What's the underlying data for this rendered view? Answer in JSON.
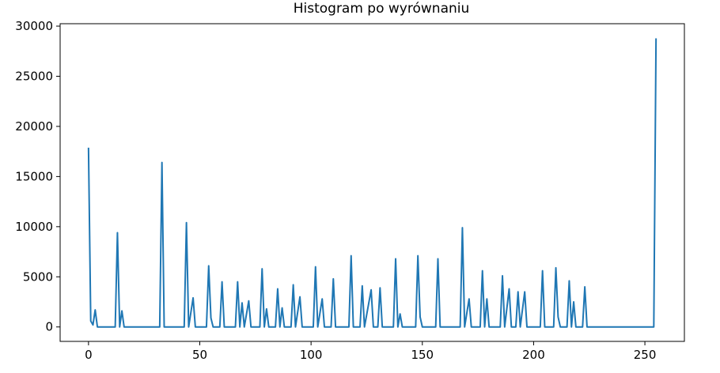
{
  "chart_data": {
    "type": "line",
    "title": "Histogram po wyrównaniu",
    "xlabel": "",
    "ylabel": "",
    "xlim": [
      -12.75,
      267.75
    ],
    "ylim": [
      -1440,
      30240
    ],
    "xticks": [
      0,
      50,
      100,
      150,
      200,
      250
    ],
    "yticks": [
      0,
      5000,
      10000,
      15000,
      20000,
      25000,
      30000
    ],
    "grid": false,
    "series": [
      {
        "color": "#1f77b4",
        "points": [
          [
            0,
            17800
          ],
          [
            1,
            600
          ],
          [
            2,
            200
          ],
          [
            3,
            1700
          ],
          [
            4,
            0
          ],
          [
            12,
            0
          ],
          [
            13,
            9400
          ],
          [
            14,
            0
          ],
          [
            15,
            1600
          ],
          [
            16,
            0
          ],
          [
            32,
            0
          ],
          [
            33,
            16400
          ],
          [
            34,
            0
          ],
          [
            43,
            0
          ],
          [
            44,
            10400
          ],
          [
            45,
            0
          ],
          [
            47,
            2900
          ],
          [
            48,
            0
          ],
          [
            53,
            0
          ],
          [
            54,
            6100
          ],
          [
            55,
            900
          ],
          [
            56,
            0
          ],
          [
            59,
            0
          ],
          [
            60,
            4500
          ],
          [
            61,
            0
          ],
          [
            66,
            0
          ],
          [
            67,
            4500
          ],
          [
            68,
            0
          ],
          [
            69,
            2400
          ],
          [
            70,
            0
          ],
          [
            72,
            2600
          ],
          [
            73,
            0
          ],
          [
            77,
            0
          ],
          [
            78,
            5800
          ],
          [
            79,
            0
          ],
          [
            80,
            1800
          ],
          [
            81,
            0
          ],
          [
            84,
            0
          ],
          [
            85,
            3800
          ],
          [
            86,
            0
          ],
          [
            87,
            1900
          ],
          [
            88,
            0
          ],
          [
            91,
            0
          ],
          [
            92,
            4200
          ],
          [
            93,
            0
          ],
          [
            95,
            3000
          ],
          [
            96,
            0
          ],
          [
            101,
            0
          ],
          [
            102,
            6000
          ],
          [
            103,
            0
          ],
          [
            105,
            2800
          ],
          [
            106,
            0
          ],
          [
            109,
            0
          ],
          [
            110,
            4800
          ],
          [
            111,
            0
          ],
          [
            117,
            0
          ],
          [
            118,
            7100
          ],
          [
            119,
            0
          ],
          [
            122,
            0
          ],
          [
            123,
            4100
          ],
          [
            124,
            0
          ],
          [
            127,
            3700
          ],
          [
            128,
            0
          ],
          [
            130,
            0
          ],
          [
            131,
            3900
          ],
          [
            132,
            0
          ],
          [
            137,
            0
          ],
          [
            138,
            6800
          ],
          [
            139,
            0
          ],
          [
            140,
            1300
          ],
          [
            141,
            0
          ],
          [
            147,
            0
          ],
          [
            148,
            7100
          ],
          [
            149,
            1000
          ],
          [
            150,
            0
          ],
          [
            156,
            0
          ],
          [
            157,
            6800
          ],
          [
            158,
            0
          ],
          [
            167,
            0
          ],
          [
            168,
            9900
          ],
          [
            169,
            0
          ],
          [
            171,
            2800
          ],
          [
            172,
            0
          ],
          [
            176,
            0
          ],
          [
            177,
            5600
          ],
          [
            178,
            0
          ],
          [
            179,
            2800
          ],
          [
            180,
            0
          ],
          [
            185,
            0
          ],
          [
            186,
            5100
          ],
          [
            187,
            0
          ],
          [
            189,
            3800
          ],
          [
            190,
            0
          ],
          [
            192,
            0
          ],
          [
            193,
            3500
          ],
          [
            194,
            0
          ],
          [
            196,
            3500
          ],
          [
            197,
            0
          ],
          [
            203,
            0
          ],
          [
            204,
            5600
          ],
          [
            205,
            0
          ],
          [
            209,
            0
          ],
          [
            210,
            5900
          ],
          [
            211,
            1000
          ],
          [
            212,
            0
          ],
          [
            215,
            0
          ],
          [
            216,
            4600
          ],
          [
            217,
            0
          ],
          [
            218,
            2500
          ],
          [
            219,
            0
          ],
          [
            222,
            0
          ],
          [
            223,
            4000
          ],
          [
            224,
            0
          ],
          [
            254,
            0
          ],
          [
            255,
            28700
          ]
        ]
      }
    ]
  }
}
